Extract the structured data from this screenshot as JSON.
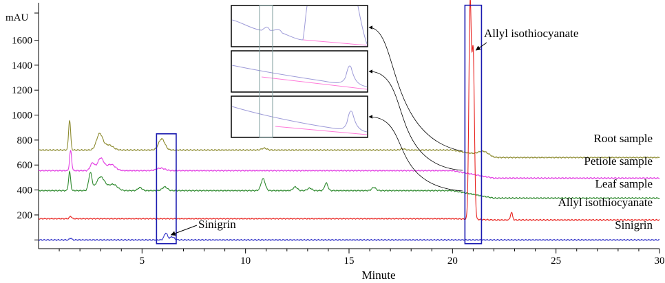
{
  "chart_data": {
    "type": "line",
    "title": "",
    "xlabel": "Minute",
    "ylabel": "mAU",
    "xlim": [
      0,
      30
    ],
    "ylim": [
      -70,
      1900
    ],
    "x_ticks": [
      5,
      10,
      15,
      20,
      25,
      30
    ],
    "y_ticks": [
      200,
      400,
      600,
      800,
      1000,
      1200,
      1400,
      1600
    ],
    "grid": false,
    "legend": "none",
    "series": [
      {
        "name": "Root sample",
        "color": "#8c8a2e",
        "baseline": 720,
        "end_value": 660,
        "peaks": [
          [
            1.5,
            240,
            0.05
          ],
          [
            2.95,
            130,
            0.15
          ],
          [
            3.4,
            40,
            0.2
          ],
          [
            5.95,
            90,
            0.15
          ],
          [
            10.9,
            15,
            0.12
          ],
          [
            17.6,
            10,
            0.1
          ],
          [
            21.5,
            35,
            0.25
          ]
        ]
      },
      {
        "name": "Petiole sample",
        "color": "#e23ce2",
        "baseline": 555,
        "end_value": 495,
        "peaks": [
          [
            1.55,
            160,
            0.05
          ],
          [
            2.6,
            60,
            0.1
          ],
          [
            3.0,
            100,
            0.15
          ],
          [
            3.5,
            50,
            0.2
          ],
          [
            5.9,
            20,
            0.2
          ]
        ]
      },
      {
        "name": "Leaf sample",
        "color": "#2f8a2f",
        "baseline": 395,
        "end_value": 335,
        "peaks": [
          [
            1.5,
            150,
            0.05
          ],
          [
            2.5,
            140,
            0.08
          ],
          [
            3.0,
            110,
            0.2
          ],
          [
            3.6,
            50,
            0.2
          ],
          [
            4.9,
            25,
            0.1
          ],
          [
            6.1,
            30,
            0.12
          ],
          [
            10.85,
            95,
            0.1
          ],
          [
            12.4,
            30,
            0.1
          ],
          [
            13.1,
            20,
            0.1
          ],
          [
            13.9,
            60,
            0.08
          ],
          [
            16.2,
            25,
            0.1
          ]
        ]
      },
      {
        "name": "Allyl isothiocyanate",
        "color": "#e8231f",
        "baseline": 170,
        "end_value": 160,
        "peaks": [
          [
            1.55,
            20,
            0.05
          ],
          [
            20.85,
            1700,
            0.06
          ],
          [
            21.0,
            1300,
            0.06
          ],
          [
            22.85,
            60,
            0.05
          ]
        ]
      },
      {
        "name": "Sinigrin",
        "color": "#3233c8",
        "baseline": 0,
        "end_value": 0,
        "peaks": [
          [
            1.55,
            15,
            0.05
          ],
          [
            6.15,
            55,
            0.08
          ],
          [
            6.45,
            25,
            0.1
          ]
        ]
      }
    ],
    "annotations": [
      {
        "text": "Allyl isothiocyanate",
        "points_to": [
          21.0,
          1520
        ]
      },
      {
        "text": "Sinigrin",
        "points_to": [
          6.2,
          40
        ]
      }
    ],
    "highlight_boxes": [
      {
        "x_range": [
          5.7,
          6.65
        ],
        "y_range": [
          -30,
          850
        ]
      },
      {
        "x_range": [
          20.6,
          21.4
        ],
        "y_range": [
          -30,
          1880
        ]
      }
    ]
  }
}
